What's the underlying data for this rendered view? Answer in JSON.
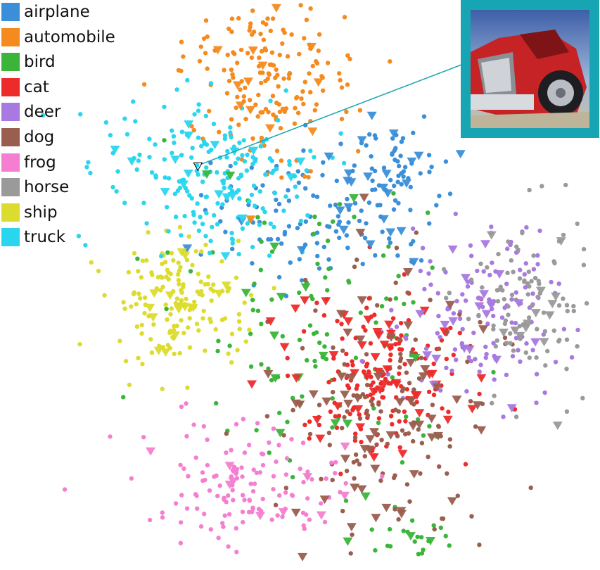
{
  "chart_data": {
    "type": "scatter",
    "title": "",
    "xlabel": "",
    "ylabel": "",
    "grid": false,
    "legend_position": "top-left",
    "markers": {
      "filled_circle": "sample",
      "triangle_down": "highlighted sample"
    },
    "series": [
      {
        "name": "airplane",
        "color": "#3a8fd8"
      },
      {
        "name": "automobile",
        "color": "#f58a1f"
      },
      {
        "name": "bird",
        "color": "#3ab53a"
      },
      {
        "name": "cat",
        "color": "#ee2b2b"
      },
      {
        "name": "deer",
        "color": "#a879e0"
      },
      {
        "name": "dog",
        "color": "#9a5e4e"
      },
      {
        "name": "frog",
        "color": "#f47fd0"
      },
      {
        "name": "horse",
        "color": "#9a9a9a"
      },
      {
        "name": "ship",
        "color": "#dcdc2e"
      },
      {
        "name": "truck",
        "color": "#2ad6ee"
      }
    ],
    "clusters": [
      {
        "name": "airplane",
        "cx": 0.52,
        "cy": 0.37,
        "sx": 0.11,
        "sy": 0.06,
        "n": 120,
        "tri": 18
      },
      {
        "name": "airplane",
        "cx": 0.66,
        "cy": 0.28,
        "sx": 0.05,
        "sy": 0.04,
        "n": 40,
        "tri": 8
      },
      {
        "name": "automobile",
        "cx": 0.42,
        "cy": 0.12,
        "sx": 0.08,
        "sy": 0.08,
        "n": 180,
        "tri": 14
      },
      {
        "name": "bird",
        "cx": 0.52,
        "cy": 0.57,
        "sx": 0.13,
        "sy": 0.13,
        "n": 110,
        "tri": 16
      },
      {
        "name": "bird",
        "cx": 0.68,
        "cy": 0.96,
        "sx": 0.05,
        "sy": 0.015,
        "n": 20,
        "tri": 3
      },
      {
        "name": "cat",
        "cx": 0.62,
        "cy": 0.66,
        "sx": 0.08,
        "sy": 0.08,
        "n": 140,
        "tri": 48
      },
      {
        "name": "deer",
        "cx": 0.8,
        "cy": 0.55,
        "sx": 0.08,
        "sy": 0.08,
        "n": 130,
        "tri": 20
      },
      {
        "name": "dog",
        "cx": 0.64,
        "cy": 0.72,
        "sx": 0.1,
        "sy": 0.12,
        "n": 130,
        "tri": 55
      },
      {
        "name": "frog",
        "cx": 0.38,
        "cy": 0.86,
        "sx": 0.09,
        "sy": 0.05,
        "n": 130,
        "tri": 10
      },
      {
        "name": "horse",
        "cx": 0.9,
        "cy": 0.52,
        "sx": 0.06,
        "sy": 0.08,
        "n": 100,
        "tri": 14
      },
      {
        "name": "ship",
        "cx": 0.25,
        "cy": 0.53,
        "sx": 0.06,
        "sy": 0.06,
        "n": 150,
        "tri": 14
      },
      {
        "name": "truck",
        "cx": 0.3,
        "cy": 0.3,
        "sx": 0.09,
        "sy": 0.07,
        "n": 190,
        "tri": 18
      }
    ],
    "highlight": {
      "class": "truck",
      "x": 0.29,
      "y": 0.28
    }
  },
  "legend": {
    "items": [
      {
        "label": "airplane",
        "color": "#3a8fd8"
      },
      {
        "label": "automobile",
        "color": "#f58a1f"
      },
      {
        "label": "bird",
        "color": "#3ab53a"
      },
      {
        "label": "cat",
        "color": "#ee2b2b"
      },
      {
        "label": "deer",
        "color": "#a879e0"
      },
      {
        "label": "dog",
        "color": "#9a5e4e"
      },
      {
        "label": "frog",
        "color": "#f47fd0"
      },
      {
        "label": "horse",
        "color": "#9a9a9a"
      },
      {
        "label": "ship",
        "color": "#dcdc2e"
      },
      {
        "label": "truck",
        "color": "#2ad6ee"
      }
    ]
  },
  "thumbnail": {
    "frame_color": "#18a5b3",
    "depicts": "red-truck"
  }
}
